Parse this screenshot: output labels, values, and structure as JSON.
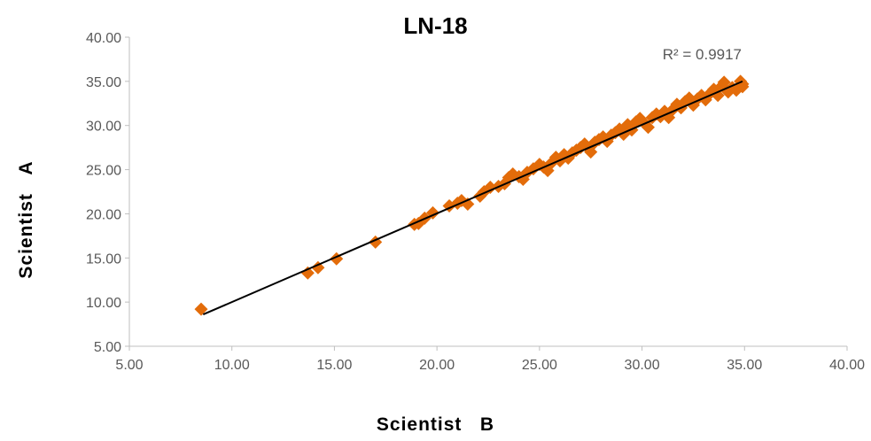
{
  "chart_data": {
    "type": "scatter",
    "title": "LN-18",
    "xlabel": "Scientist   B",
    "ylabel": "Scientist   A",
    "xlim": [
      5,
      40
    ],
    "ylim": [
      5,
      40
    ],
    "xticks": [
      "5.00",
      "10.00",
      "15.00",
      "20.00",
      "25.00",
      "30.00",
      "35.00",
      "40.00"
    ],
    "yticks": [
      "5.00",
      "10.00",
      "15.00",
      "20.00",
      "25.00",
      "30.00",
      "35.00",
      "40.00"
    ],
    "grid": false,
    "legend": "none",
    "r_squared_label": "R² = 0.9917",
    "marker_color": "#E36C0A",
    "trendline_color": "#000000",
    "trendline": {
      "x": [
        8.6,
        34.9
      ],
      "y": [
        8.6,
        35.0
      ]
    },
    "points": [
      [
        8.5,
        9.2
      ],
      [
        13.7,
        13.3
      ],
      [
        14.2,
        13.9
      ],
      [
        15.1,
        14.9
      ],
      [
        17.0,
        16.8
      ],
      [
        18.9,
        18.8
      ],
      [
        19.1,
        18.9
      ],
      [
        19.4,
        19.5
      ],
      [
        19.8,
        20.1
      ],
      [
        20.6,
        20.9
      ],
      [
        21.0,
        21.2
      ],
      [
        21.2,
        21.5
      ],
      [
        21.5,
        21.1
      ],
      [
        22.1,
        22.0
      ],
      [
        22.3,
        22.5
      ],
      [
        22.6,
        23.0
      ],
      [
        23.0,
        23.1
      ],
      [
        23.3,
        23.4
      ],
      [
        23.5,
        24.1
      ],
      [
        23.7,
        24.5
      ],
      [
        24.0,
        24.2
      ],
      [
        24.2,
        23.9
      ],
      [
        24.4,
        24.7
      ],
      [
        24.7,
        25.1
      ],
      [
        25.0,
        25.6
      ],
      [
        25.2,
        25.3
      ],
      [
        25.4,
        24.9
      ],
      [
        25.6,
        25.8
      ],
      [
        25.8,
        26.4
      ],
      [
        26.0,
        26.0
      ],
      [
        26.2,
        26.7
      ],
      [
        26.4,
        26.3
      ],
      [
        26.6,
        26.9
      ],
      [
        26.8,
        27.2
      ],
      [
        27.0,
        27.5
      ],
      [
        27.2,
        27.9
      ],
      [
        27.4,
        27.4
      ],
      [
        27.5,
        27.0
      ],
      [
        27.7,
        28.1
      ],
      [
        27.9,
        28.4
      ],
      [
        28.1,
        28.7
      ],
      [
        28.3,
        28.2
      ],
      [
        28.5,
        28.9
      ],
      [
        28.7,
        29.2
      ],
      [
        28.9,
        29.6
      ],
      [
        29.1,
        29.0
      ],
      [
        29.3,
        30.1
      ],
      [
        29.5,
        29.5
      ],
      [
        29.7,
        30.4
      ],
      [
        29.9,
        30.8
      ],
      [
        30.1,
        30.3
      ],
      [
        30.3,
        29.8
      ],
      [
        30.5,
        30.9
      ],
      [
        30.7,
        31.3
      ],
      [
        30.9,
        31.0
      ],
      [
        31.1,
        31.6
      ],
      [
        31.3,
        30.9
      ],
      [
        31.5,
        31.8
      ],
      [
        31.7,
        32.4
      ],
      [
        31.9,
        32.0
      ],
      [
        32.1,
        32.7
      ],
      [
        32.3,
        33.1
      ],
      [
        32.5,
        32.3
      ],
      [
        32.7,
        33.0
      ],
      [
        32.9,
        33.4
      ],
      [
        33.1,
        32.9
      ],
      [
        33.3,
        33.6
      ],
      [
        33.5,
        34.1
      ],
      [
        33.7,
        33.4
      ],
      [
        33.9,
        34.5
      ],
      [
        34.0,
        34.9
      ],
      [
        34.2,
        33.8
      ],
      [
        34.4,
        34.3
      ],
      [
        34.6,
        34.0
      ],
      [
        34.8,
        35.0
      ],
      [
        34.9,
        34.4
      ],
      [
        34.9,
        34.7
      ]
    ]
  }
}
